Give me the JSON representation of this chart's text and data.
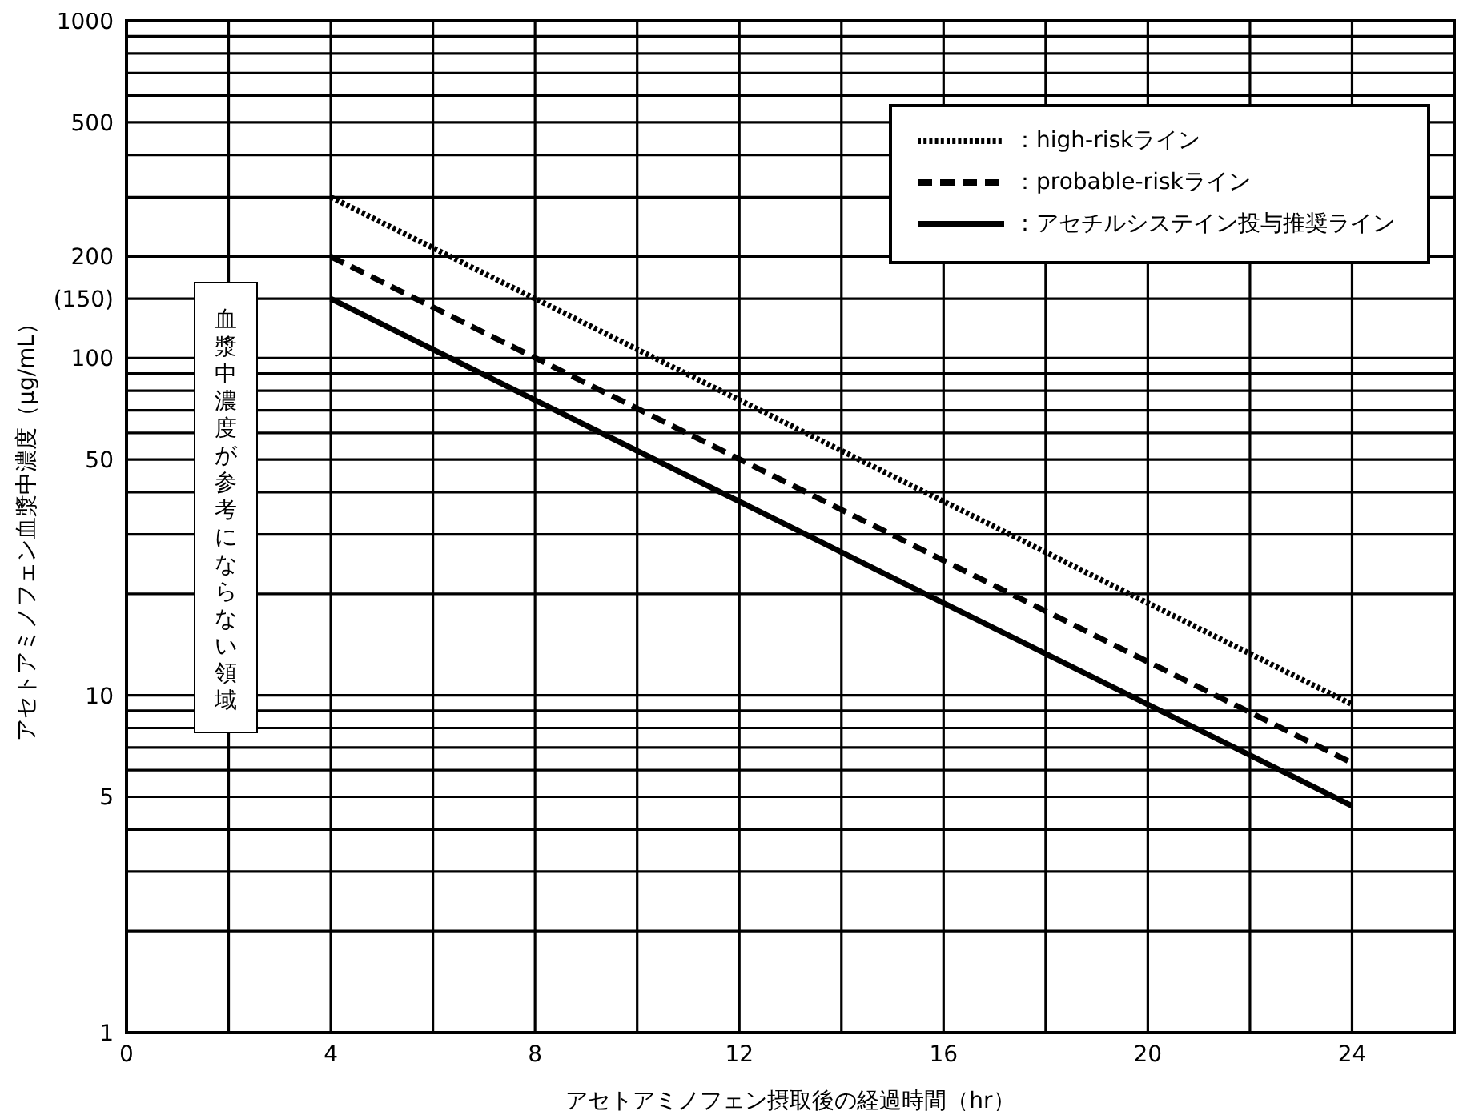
{
  "chart_data": {
    "type": "line",
    "xlabel": "アセトアミノフェン摂取後の経過時間（hr）",
    "ylabel": "アセトアミノフェン血漿中濃度（μg/mL）",
    "x": [
      4,
      24
    ],
    "series": [
      {
        "name": "：high-riskライン",
        "color": "#000000",
        "values": [
          300,
          9.4
        ],
        "line_style": "dotted"
      },
      {
        "name": "：probable-riskライン",
        "color": "#000000",
        "values": [
          200,
          6.3
        ],
        "line_style": "dashed"
      },
      {
        "name": "：アセチルシステイン投与推奨ライン",
        "color": "#000000",
        "values": [
          150,
          4.7
        ],
        "line_style": "solid"
      }
    ],
    "log": true,
    "xlim": [
      0,
      26
    ],
    "ylim": [
      1,
      1000
    ],
    "xticks": [
      0,
      {
        "value": 2,
        "label": null
      },
      4,
      {
        "value": 6,
        "label": null
      },
      8,
      {
        "value": 10,
        "label": null
      },
      12,
      {
        "value": 14,
        "label": null
      },
      16,
      {
        "value": 18,
        "label": null
      },
      20,
      {
        "value": 22,
        "label": null
      },
      24
    ],
    "yticks": [
      1,
      {
        "value": 2,
        "label": null
      },
      {
        "value": 3,
        "label": null
      },
      {
        "value": 4,
        "label": null
      },
      5,
      {
        "value": 6,
        "label": null
      },
      {
        "value": 7,
        "label": null
      },
      {
        "value": 8,
        "label": null
      },
      {
        "value": 9,
        "label": null
      },
      10,
      {
        "value": 20,
        "label": null
      },
      {
        "value": 30,
        "label": null
      },
      {
        "value": 40,
        "label": null
      },
      50,
      {
        "value": 60,
        "label": null
      },
      {
        "value": 70,
        "label": null
      },
      {
        "value": 80,
        "label": null
      },
      {
        "value": 90,
        "label": null
      },
      100,
      {
        "value": 150,
        "label": "(150)"
      },
      200,
      {
        "value": 300,
        "label": null
      },
      {
        "value": 400,
        "label": null
      },
      500,
      {
        "value": 600,
        "label": null
      },
      {
        "value": 700,
        "label": null
      },
      {
        "value": 800,
        "label": null
      },
      {
        "value": 900,
        "label": null
      },
      1000
    ],
    "grid": true,
    "legend": "top right",
    "marker": "none",
    "annotations": [
      "血漿中濃度が参考にならない領域"
    ]
  }
}
